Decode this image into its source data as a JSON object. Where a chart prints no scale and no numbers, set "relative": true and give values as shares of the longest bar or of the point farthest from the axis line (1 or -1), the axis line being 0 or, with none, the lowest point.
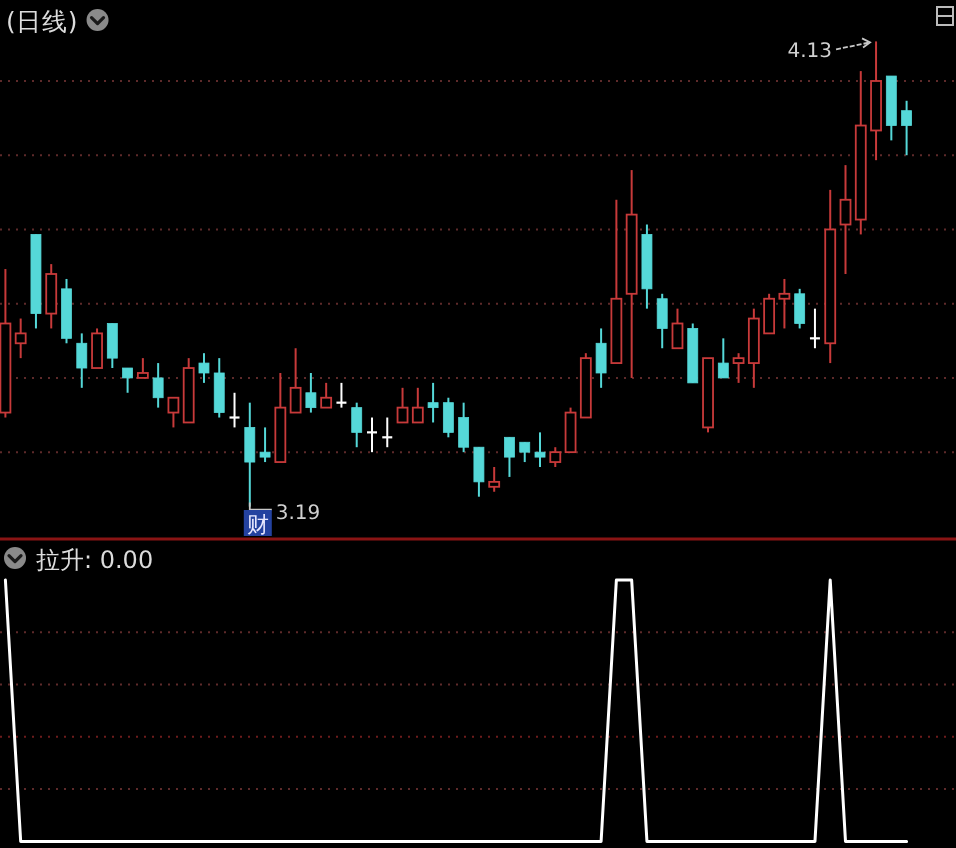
{
  "chart_data": [
    {
      "type": "candlestick",
      "title": "(日线)",
      "categories": [
        null,
        null,
        null,
        null,
        null,
        null,
        null,
        null,
        null,
        null,
        null,
        null,
        null,
        null,
        null,
        null,
        null,
        null,
        null,
        null,
        null,
        null,
        null,
        null,
        null,
        null,
        null,
        null,
        null,
        null,
        null,
        null,
        null,
        null,
        null,
        null,
        null,
        null,
        null,
        null,
        null,
        null,
        null,
        null,
        null,
        null,
        null,
        null,
        null,
        null,
        null,
        null,
        null,
        null,
        null,
        null,
        null,
        null,
        null,
        null
      ],
      "ohlc": [
        [
          3.38,
          3.67,
          3.37,
          3.56
        ],
        [
          3.52,
          3.57,
          3.49,
          3.54
        ],
        [
          3.74,
          3.74,
          3.55,
          3.58
        ],
        [
          3.58,
          3.68,
          3.55,
          3.66
        ],
        [
          3.63,
          3.65,
          3.52,
          3.53
        ],
        [
          3.52,
          3.54,
          3.43,
          3.47
        ],
        [
          3.47,
          3.55,
          3.47,
          3.54
        ],
        [
          3.56,
          3.56,
          3.47,
          3.49
        ],
        [
          3.47,
          3.47,
          3.42,
          3.45
        ],
        [
          3.45,
          3.49,
          3.45,
          3.46
        ],
        [
          3.45,
          3.48,
          3.39,
          3.41
        ],
        [
          3.38,
          3.41,
          3.35,
          3.41
        ],
        [
          3.36,
          3.49,
          3.36,
          3.47
        ],
        [
          3.48,
          3.5,
          3.44,
          3.46
        ],
        [
          3.46,
          3.49,
          3.37,
          3.38
        ],
        [
          3.37,
          3.42,
          3.35,
          3.37
        ],
        [
          3.35,
          3.4,
          3.19,
          3.28
        ],
        [
          3.3,
          3.35,
          3.28,
          3.29
        ],
        [
          3.28,
          3.46,
          3.28,
          3.39
        ],
        [
          3.38,
          3.51,
          3.38,
          3.43
        ],
        [
          3.42,
          3.46,
          3.38,
          3.39
        ],
        [
          3.39,
          3.44,
          3.39,
          3.41
        ],
        [
          3.4,
          3.44,
          3.39,
          3.4
        ],
        [
          3.39,
          3.4,
          3.31,
          3.34
        ],
        [
          3.34,
          3.37,
          3.3,
          3.34
        ],
        [
          3.33,
          3.37,
          3.31,
          3.33
        ],
        [
          3.36,
          3.43,
          3.36,
          3.39
        ],
        [
          3.36,
          3.43,
          3.36,
          3.39
        ],
        [
          3.4,
          3.44,
          3.36,
          3.39
        ],
        [
          3.4,
          3.41,
          3.33,
          3.34
        ],
        [
          3.37,
          3.4,
          3.3,
          3.31
        ],
        [
          3.31,
          3.31,
          3.21,
          3.24
        ],
        [
          3.23,
          3.27,
          3.22,
          3.24
        ],
        [
          3.33,
          3.33,
          3.25,
          3.29
        ],
        [
          3.32,
          3.32,
          3.28,
          3.3
        ],
        [
          3.3,
          3.34,
          3.27,
          3.29
        ],
        [
          3.28,
          3.31,
          3.27,
          3.3
        ],
        [
          3.3,
          3.39,
          3.3,
          3.38
        ],
        [
          3.37,
          3.5,
          3.37,
          3.49
        ],
        [
          3.52,
          3.55,
          3.43,
          3.46
        ],
        [
          3.48,
          3.81,
          3.48,
          3.61
        ],
        [
          3.62,
          3.87,
          3.45,
          3.78
        ],
        [
          3.74,
          3.76,
          3.59,
          3.63
        ],
        [
          3.61,
          3.62,
          3.51,
          3.55
        ],
        [
          3.51,
          3.59,
          3.51,
          3.56
        ],
        [
          3.55,
          3.56,
          3.44,
          3.44
        ],
        [
          3.35,
          3.49,
          3.34,
          3.49
        ],
        [
          3.48,
          3.53,
          3.45,
          3.45
        ],
        [
          3.48,
          3.5,
          3.44,
          3.49
        ],
        [
          3.48,
          3.59,
          3.43,
          3.57
        ],
        [
          3.54,
          3.62,
          3.54,
          3.61
        ],
        [
          3.61,
          3.65,
          3.55,
          3.62
        ],
        [
          3.62,
          3.63,
          3.55,
          3.56
        ],
        [
          3.53,
          3.59,
          3.51,
          3.53
        ],
        [
          3.52,
          3.83,
          3.48,
          3.75
        ],
        [
          3.76,
          3.88,
          3.66,
          3.81
        ],
        [
          3.77,
          4.07,
          3.74,
          3.96
        ],
        [
          3.95,
          4.13,
          3.89,
          4.05
        ],
        [
          4.06,
          4.06,
          3.93,
          3.96
        ],
        [
          3.99,
          4.01,
          3.9,
          3.96
        ]
      ],
      "colors": [
        "#c83a3a",
        "#c83a3a",
        "#55d8d8",
        "#c83a3a",
        "#55d8d8",
        "#55d8d8",
        "#c83a3a",
        "#55d8d8",
        "#55d8d8",
        "#c83a3a",
        "#55d8d8",
        "#c83a3a",
        "#c83a3a",
        "#55d8d8",
        "#55d8d8",
        "#ffffff",
        "#55d8d8",
        "#55d8d8",
        "#c83a3a",
        "#c83a3a",
        "#55d8d8",
        "#c83a3a",
        "#ffffff",
        "#55d8d8",
        "#ffffff",
        "#ffffff",
        "#c83a3a",
        "#c83a3a",
        "#55d8d8",
        "#55d8d8",
        "#55d8d8",
        "#55d8d8",
        "#c83a3a",
        "#55d8d8",
        "#55d8d8",
        "#55d8d8",
        "#c83a3a",
        "#c83a3a",
        "#c83a3a",
        "#55d8d8",
        "#c83a3a",
        "#c83a3a",
        "#55d8d8",
        "#55d8d8",
        "#c83a3a",
        "#55d8d8",
        "#c83a3a",
        "#55d8d8",
        "#c83a3a",
        "#c83a3a",
        "#c83a3a",
        "#c83a3a",
        "#55d8d8",
        "#ffffff",
        "#c83a3a",
        "#c83a3a",
        "#c83a3a",
        "#c83a3a",
        "#55d8d8",
        "#55d8d8"
      ],
      "annotations": [
        "4.13",
        "3.19",
        "财"
      ],
      "yticks": [
        {
          "value": 4.05,
          "label": null
        },
        {
          "value": 3.9,
          "label": null
        },
        {
          "value": 3.75,
          "label": null
        },
        {
          "value": 3.6,
          "label": null
        },
        {
          "value": 3.45,
          "label": null
        },
        {
          "value": 3.3,
          "label": null
        }
      ],
      "grid": "y"
    },
    {
      "type": "line",
      "title": "拉升: 0.00",
      "categories": [
        null,
        null,
        null,
        null,
        null,
        null,
        null,
        null,
        null,
        null,
        null,
        null,
        null,
        null,
        null,
        null,
        null,
        null,
        null,
        null,
        null,
        null,
        null,
        null,
        null,
        null,
        null,
        null,
        null,
        null,
        null,
        null,
        null,
        null,
        null,
        null,
        null,
        null,
        null,
        null,
        null,
        null,
        null,
        null,
        null,
        null,
        null,
        null,
        null,
        null,
        null,
        null,
        null,
        null,
        null,
        null,
        null,
        null,
        null,
        null
      ],
      "relative": true,
      "series": [
        {
          "color": "#ffffff",
          "values": [
            1,
            0,
            0,
            0,
            0,
            0,
            0,
            0,
            0,
            0,
            0,
            0,
            0,
            0,
            0,
            0,
            0,
            0,
            0,
            0,
            0,
            0,
            0,
            0,
            0,
            0,
            0,
            0,
            0,
            0,
            0,
            0,
            0,
            0,
            0,
            0,
            0,
            0,
            0,
            0,
            1,
            1,
            0,
            0,
            0,
            0,
            0,
            0,
            0,
            0,
            0,
            0,
            0,
            0,
            1,
            0,
            0,
            0,
            0,
            0
          ]
        }
      ],
      "ref_lines": [
        {
          "axis": "y",
          "value": 0.8,
          "color": "#5e2a2a",
          "line_style": "dotted"
        },
        {
          "axis": "y",
          "value": 0.6,
          "color": "#5e2a2a",
          "line_style": "dotted"
        },
        {
          "axis": "y",
          "value": 0.4,
          "color": "#6e1c1c",
          "line_style": "dotted"
        },
        {
          "axis": "y",
          "value": 0.2,
          "color": "#5e2a2a",
          "line_style": "dotted"
        }
      ]
    }
  ]
}
